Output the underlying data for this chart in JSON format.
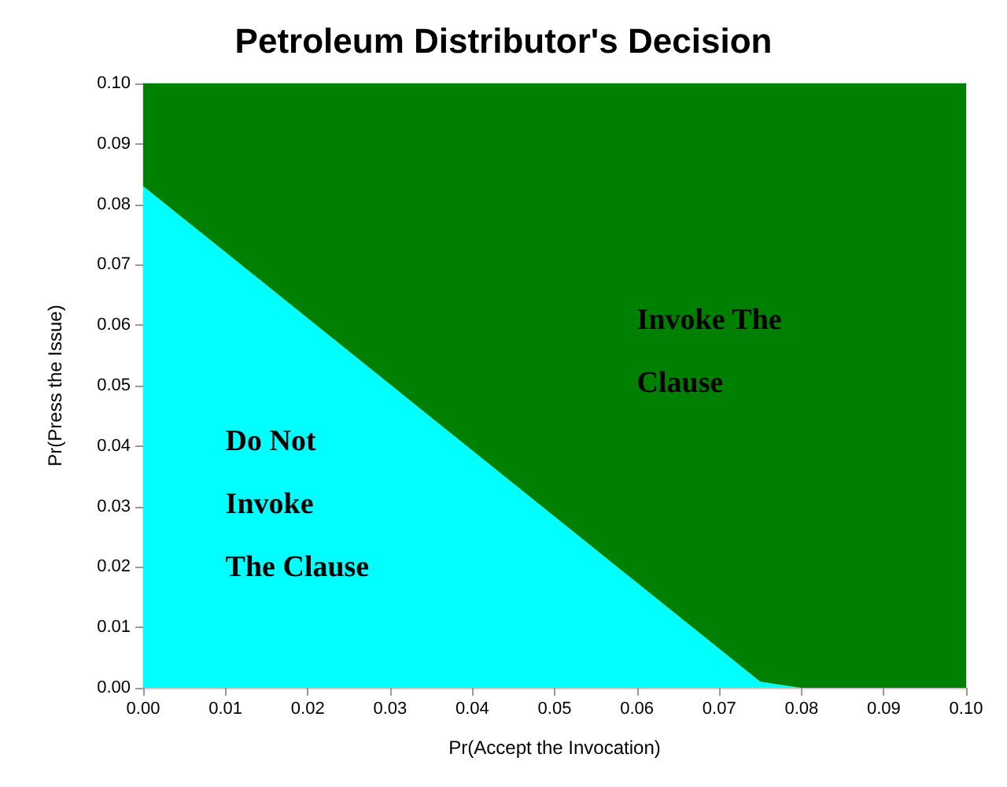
{
  "chart_data": {
    "type": "area",
    "stacked": true,
    "title": "Petroleum Distributor's Decision",
    "xlabel": "Pr(Accept the Invocation)",
    "ylabel": "Pr(Press the Issue)",
    "x": [
      0,
      0.075,
      0.08,
      0.1
    ],
    "series": [
      {
        "color": "#00ffff",
        "values": [
          0.083,
          0.001,
          0,
          0
        ]
      },
      {
        "color": "#008000",
        "values": [
          0.017,
          0.099,
          0.1,
          0.1
        ]
      }
    ],
    "xlim": [
      0,
      0.1
    ],
    "ylim": [
      0,
      0.1
    ],
    "xticks": [
      {
        "value": 0,
        "label": "0.00"
      },
      {
        "value": 0.01,
        "label": "0.01"
      },
      {
        "value": 0.02,
        "label": "0.02"
      },
      {
        "value": 0.03,
        "label": "0.03"
      },
      {
        "value": 0.04,
        "label": "0.04"
      },
      {
        "value": 0.05,
        "label": "0.05"
      },
      {
        "value": 0.06,
        "label": "0.06"
      },
      {
        "value": 0.07,
        "label": "0.07"
      },
      {
        "value": 0.08,
        "label": "0.08"
      },
      {
        "value": 0.09,
        "label": "0.09"
      },
      {
        "value": 0.1,
        "label": "0.10"
      }
    ],
    "yticks": [
      {
        "value": 0,
        "label": "0.00"
      },
      {
        "value": 0.01,
        "label": "0.01"
      },
      {
        "value": 0.02,
        "label": "0.02"
      },
      {
        "value": 0.03,
        "label": "0.03"
      },
      {
        "value": 0.04,
        "label": "0.04"
      },
      {
        "value": 0.05,
        "label": "0.05"
      },
      {
        "value": 0.06,
        "label": "0.06"
      },
      {
        "value": 0.07,
        "label": "0.07"
      },
      {
        "value": 0.08,
        "label": "0.08"
      },
      {
        "value": 0.09,
        "label": "0.09"
      },
      {
        "value": 0.1,
        "label": "0.10"
      }
    ],
    "annotations": [
      "Do Not\nInvoke\nThe Clause",
      "Invoke The\nClause"
    ],
    "grid": false
  }
}
